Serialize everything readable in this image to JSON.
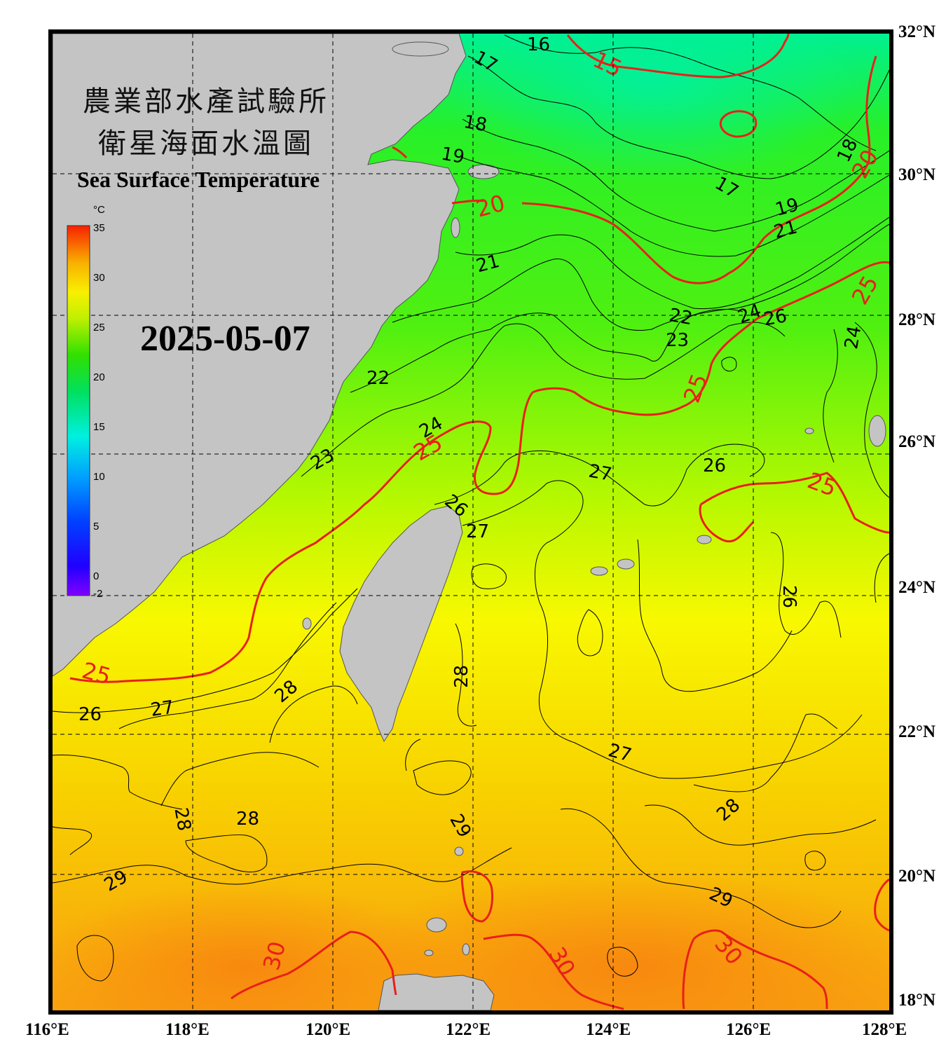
{
  "header": {
    "title_cn_line1": "農業部水產試驗所",
    "title_cn_line2": "衛星海面水溫圖",
    "title_en": "Sea Surface Temperature",
    "date": "2025-05-07"
  },
  "colorbar": {
    "unit": "°C",
    "ticks": [
      "35",
      "30",
      "25",
      "20",
      "15",
      "10",
      "5",
      "0",
      "-2"
    ]
  },
  "axes": {
    "x_labels": [
      "116°E",
      "118°E",
      "120°E",
      "122°E",
      "124°E",
      "126°E",
      "128°E"
    ],
    "y_labels": [
      "32°N",
      "30°N",
      "28°N",
      "26°N",
      "24°N",
      "22°N",
      "20°N",
      "18°N"
    ]
  },
  "contour_labels": {
    "black": [
      "16",
      "17",
      "18",
      "19",
      "18",
      "17",
      "19",
      "21",
      "21",
      "22",
      "23",
      "24",
      "26",
      "24",
      "22",
      "24",
      "23",
      "26",
      "27",
      "26",
      "27",
      "26",
      "26",
      "27",
      "28",
      "28",
      "27",
      "28",
      "28",
      "28",
      "29",
      "29",
      "29"
    ],
    "red": [
      "15",
      "20",
      "20",
      "25",
      "25",
      "25",
      "25",
      "25",
      "30",
      "30",
      "30"
    ]
  },
  "colors": {
    "land": "#c4c4c4",
    "red_isotherm": "#e8201a",
    "frame": "#000000"
  }
}
